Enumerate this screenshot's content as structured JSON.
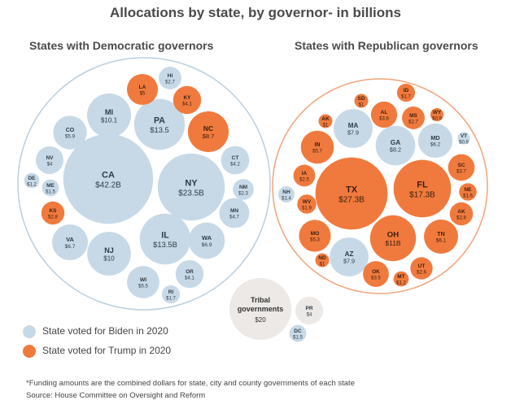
{
  "chart_data": {
    "type": "bubble",
    "title": "Allocations by state, by governor- in billions",
    "colors": {
      "biden": "#c7d9e6",
      "trump": "#f07a3d",
      "tribal": "#ece9e6",
      "dem_ring": "#b9cfe0",
      "rep_ring": "#f2a47b"
    },
    "groups": [
      {
        "name": "States with Democratic governors",
        "bubbles": [
          {
            "label": "CA",
            "value_label": "$42.2B",
            "value": 42.2,
            "vote": "biden"
          },
          {
            "label": "NY",
            "value_label": "$23.5B",
            "value": 23.5,
            "vote": "biden"
          },
          {
            "label": "IL",
            "value_label": "$13.5B",
            "value": 13.5,
            "vote": "biden"
          },
          {
            "label": "PA",
            "value_label": "$13.5",
            "value": 13.5,
            "vote": "biden"
          },
          {
            "label": "MI",
            "value_label": "$10.1",
            "value": 10.1,
            "vote": "biden"
          },
          {
            "label": "NJ",
            "value_label": "$10",
            "value": 10,
            "vote": "biden"
          },
          {
            "label": "NC",
            "value_label": "$8.7",
            "value": 8.7,
            "vote": "trump"
          },
          {
            "label": "WA",
            "value_label": "$6.9",
            "value": 6.9,
            "vote": "biden"
          },
          {
            "label": "VA",
            "value_label": "$6.7",
            "value": 6.7,
            "vote": "biden"
          },
          {
            "label": "CO",
            "value_label": "$5.9",
            "value": 5.9,
            "vote": "biden"
          },
          {
            "label": "WI",
            "value_label": "$5.5",
            "value": 5.5,
            "vote": "biden"
          },
          {
            "label": "LA",
            "value_label": "$5",
            "value": 5,
            "vote": "trump"
          },
          {
            "label": "MN",
            "value_label": "$4.7",
            "value": 4.7,
            "vote": "biden"
          },
          {
            "label": "CT",
            "value_label": "$4.2",
            "value": 4.2,
            "vote": "biden"
          },
          {
            "label": "KY",
            "value_label": "$4.1",
            "value": 4.1,
            "vote": "trump"
          },
          {
            "label": "OR",
            "value_label": "$4.1",
            "value": 4.1,
            "vote": "biden"
          },
          {
            "label": "NV",
            "value_label": "$4",
            "value": 4,
            "vote": "biden"
          },
          {
            "label": "KS",
            "value_label": "$2.8",
            "value": 2.8,
            "vote": "trump"
          },
          {
            "label": "HI",
            "value_label": "$2.7",
            "value": 2.7,
            "vote": "biden"
          },
          {
            "label": "NM",
            "value_label": "$2.3",
            "value": 2.3,
            "vote": "biden"
          },
          {
            "label": "RI",
            "value_label": "$1.7",
            "value": 1.7,
            "vote": "biden"
          },
          {
            "label": "ME",
            "value_label": "$1.5",
            "value": 1.5,
            "vote": "biden"
          },
          {
            "label": "DE",
            "value_label": "$1.2",
            "value": 1.2,
            "vote": "biden"
          }
        ]
      },
      {
        "name": "States with Republican governors",
        "bubbles": [
          {
            "label": "TX",
            "value_label": "$27.3B",
            "value": 27.3,
            "vote": "trump"
          },
          {
            "label": "FL",
            "value_label": "$17.3B",
            "value": 17.3,
            "vote": "trump"
          },
          {
            "label": "OH",
            "value_label": "$11B",
            "value": 11,
            "vote": "trump"
          },
          {
            "label": "GA",
            "value_label": "$8.2",
            "value": 8.2,
            "vote": "biden"
          },
          {
            "label": "MA",
            "value_label": "$7.9",
            "value": 7.9,
            "vote": "biden"
          },
          {
            "label": "AZ",
            "value_label": "$7.9",
            "value": 7.9,
            "vote": "biden"
          },
          {
            "label": "MD",
            "value_label": "$6.2",
            "value": 6.2,
            "vote": "biden"
          },
          {
            "label": "TN",
            "value_label": "$6.1",
            "value": 6.1,
            "vote": "trump"
          },
          {
            "label": "IN",
            "value_label": "$5.7",
            "value": 5.7,
            "vote": "trump"
          },
          {
            "label": "MO",
            "value_label": "$5.3",
            "value": 5.3,
            "vote": "trump"
          },
          {
            "label": "SC",
            "value_label": "$3.7",
            "value": 3.7,
            "vote": "trump"
          },
          {
            "label": "AL",
            "value_label": "$3.6",
            "value": 3.6,
            "vote": "trump"
          },
          {
            "label": "OK",
            "value_label": "$3.5",
            "value": 3.5,
            "vote": "trump"
          },
          {
            "label": "AK",
            "value_label": "$2.8",
            "value": 2.8,
            "vote": "trump"
          },
          {
            "label": "MS",
            "value_label": "$2.7",
            "value": 2.7,
            "vote": "trump"
          },
          {
            "label": "UT",
            "value_label": "$2.6",
            "value": 2.6,
            "vote": "trump"
          },
          {
            "label": "IA",
            "value_label": "$2.5",
            "value": 2.5,
            "vote": "trump"
          },
          {
            "label": "WV",
            "value_label": "$1.9",
            "value": 1.9,
            "vote": "trump"
          },
          {
            "label": "ID",
            "value_label": "$1.7",
            "value": 1.7,
            "vote": "trump"
          },
          {
            "label": "NE",
            "value_label": "$1.6",
            "value": 1.6,
            "vote": "trump"
          },
          {
            "label": "NH",
            "value_label": "$1.4",
            "value": 1.4,
            "vote": "biden"
          },
          {
            "label": "MT",
            "value_label": "$1.2",
            "value": 1.2,
            "vote": "trump"
          },
          {
            "label": "SD",
            "value_label": "$1",
            "value": 1,
            "vote": "trump"
          },
          {
            "label": "AK",
            "value_label": "$1",
            "value": 1,
            "vote": "trump"
          },
          {
            "label": "ND",
            "value_label": "$1",
            "value": 1,
            "vote": "trump"
          },
          {
            "label": "WY",
            "value_label": "$0.9",
            "value": 0.9,
            "vote": "trump"
          },
          {
            "label": "VT",
            "value_label": "$0.8",
            "value": 0.8,
            "vote": "biden"
          }
        ]
      },
      {
        "name": "",
        "bubbles": [
          {
            "label": "Tribal governments",
            "value_label": "$20",
            "value": 20,
            "vote": "tribal"
          },
          {
            "label": "PR",
            "value_label": "$4",
            "value": 4,
            "vote": "tribal"
          },
          {
            "label": "DC",
            "value_label": "$1.5",
            "value": 1.5,
            "vote": "biden"
          }
        ]
      }
    ],
    "legend": [
      {
        "label": "State voted for Biden in 2020",
        "vote": "biden"
      },
      {
        "label": "State voted for Trump in 2020",
        "vote": "trump"
      }
    ],
    "legend_position": "bottom-left"
  },
  "footnote": "*Funding amounts are the combined dollars for state, city and county governments of each state",
  "source": "Source: House Committee on Oversight and Reform"
}
